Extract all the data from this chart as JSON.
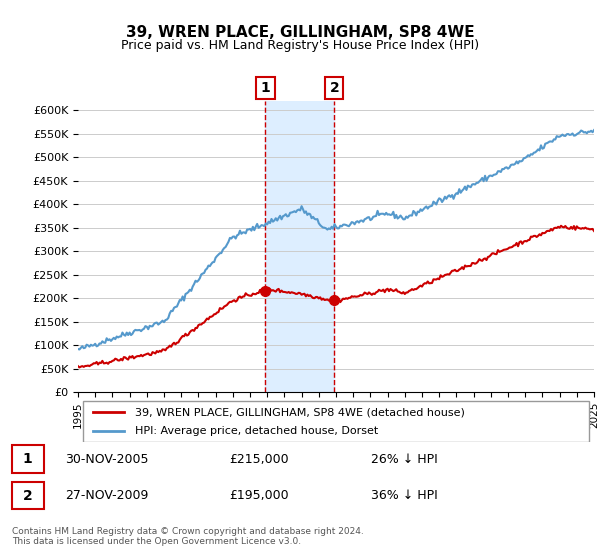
{
  "title": "39, WREN PLACE, GILLINGHAM, SP8 4WE",
  "subtitle": "Price paid vs. HM Land Registry's House Price Index (HPI)",
  "legend_label_red": "39, WREN PLACE, GILLINGHAM, SP8 4WE (detached house)",
  "legend_label_blue": "HPI: Average price, detached house, Dorset",
  "sale1_date": "30-NOV-2005",
  "sale1_price": 215000,
  "sale1_pct": "26% ↓ HPI",
  "sale2_date": "27-NOV-2009",
  "sale2_price": 195000,
  "sale2_pct": "36% ↓ HPI",
  "footer": "Contains HM Land Registry data © Crown copyright and database right 2024.\nThis data is licensed under the Open Government Licence v3.0.",
  "ylim": [
    0,
    620000
  ],
  "yticks": [
    0,
    50000,
    100000,
    150000,
    200000,
    250000,
    300000,
    350000,
    400000,
    450000,
    500000,
    550000,
    600000
  ],
  "red_color": "#cc0000",
  "blue_color": "#5599cc",
  "highlight_color": "#ddeeff",
  "sale1_year": 2005.9,
  "sale2_year": 2009.9,
  "xmin": 1995,
  "xmax": 2025
}
